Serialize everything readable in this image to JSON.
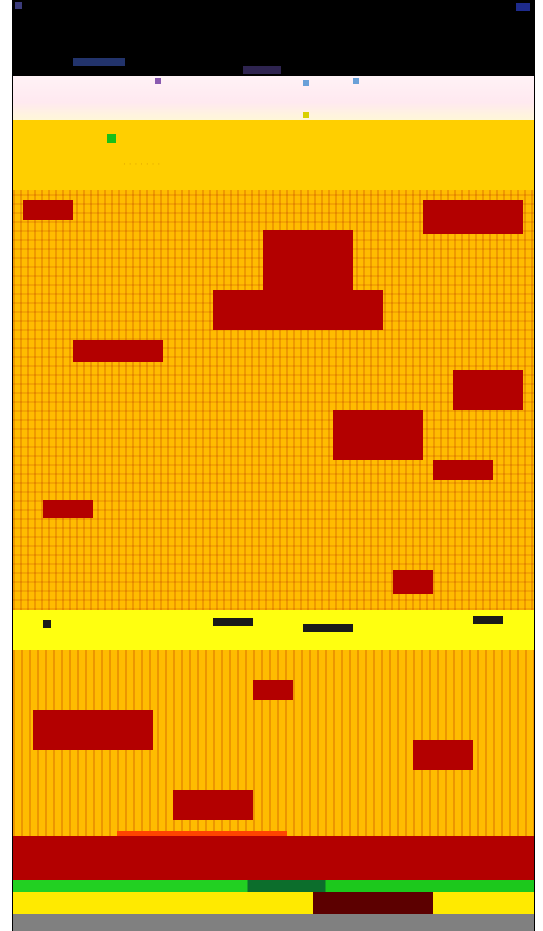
{
  "window": {
    "title": "",
    "accent_color": "#ffc400",
    "titlebar_color": "#000000",
    "scene_color": "#ffbc00",
    "detail_color": "#b30000",
    "statusbar_color": "#808080"
  },
  "icons": {
    "window_menu": "square-icon",
    "window_control": "window-control-icon",
    "toolbar_marker": "green-square-icon"
  }
}
